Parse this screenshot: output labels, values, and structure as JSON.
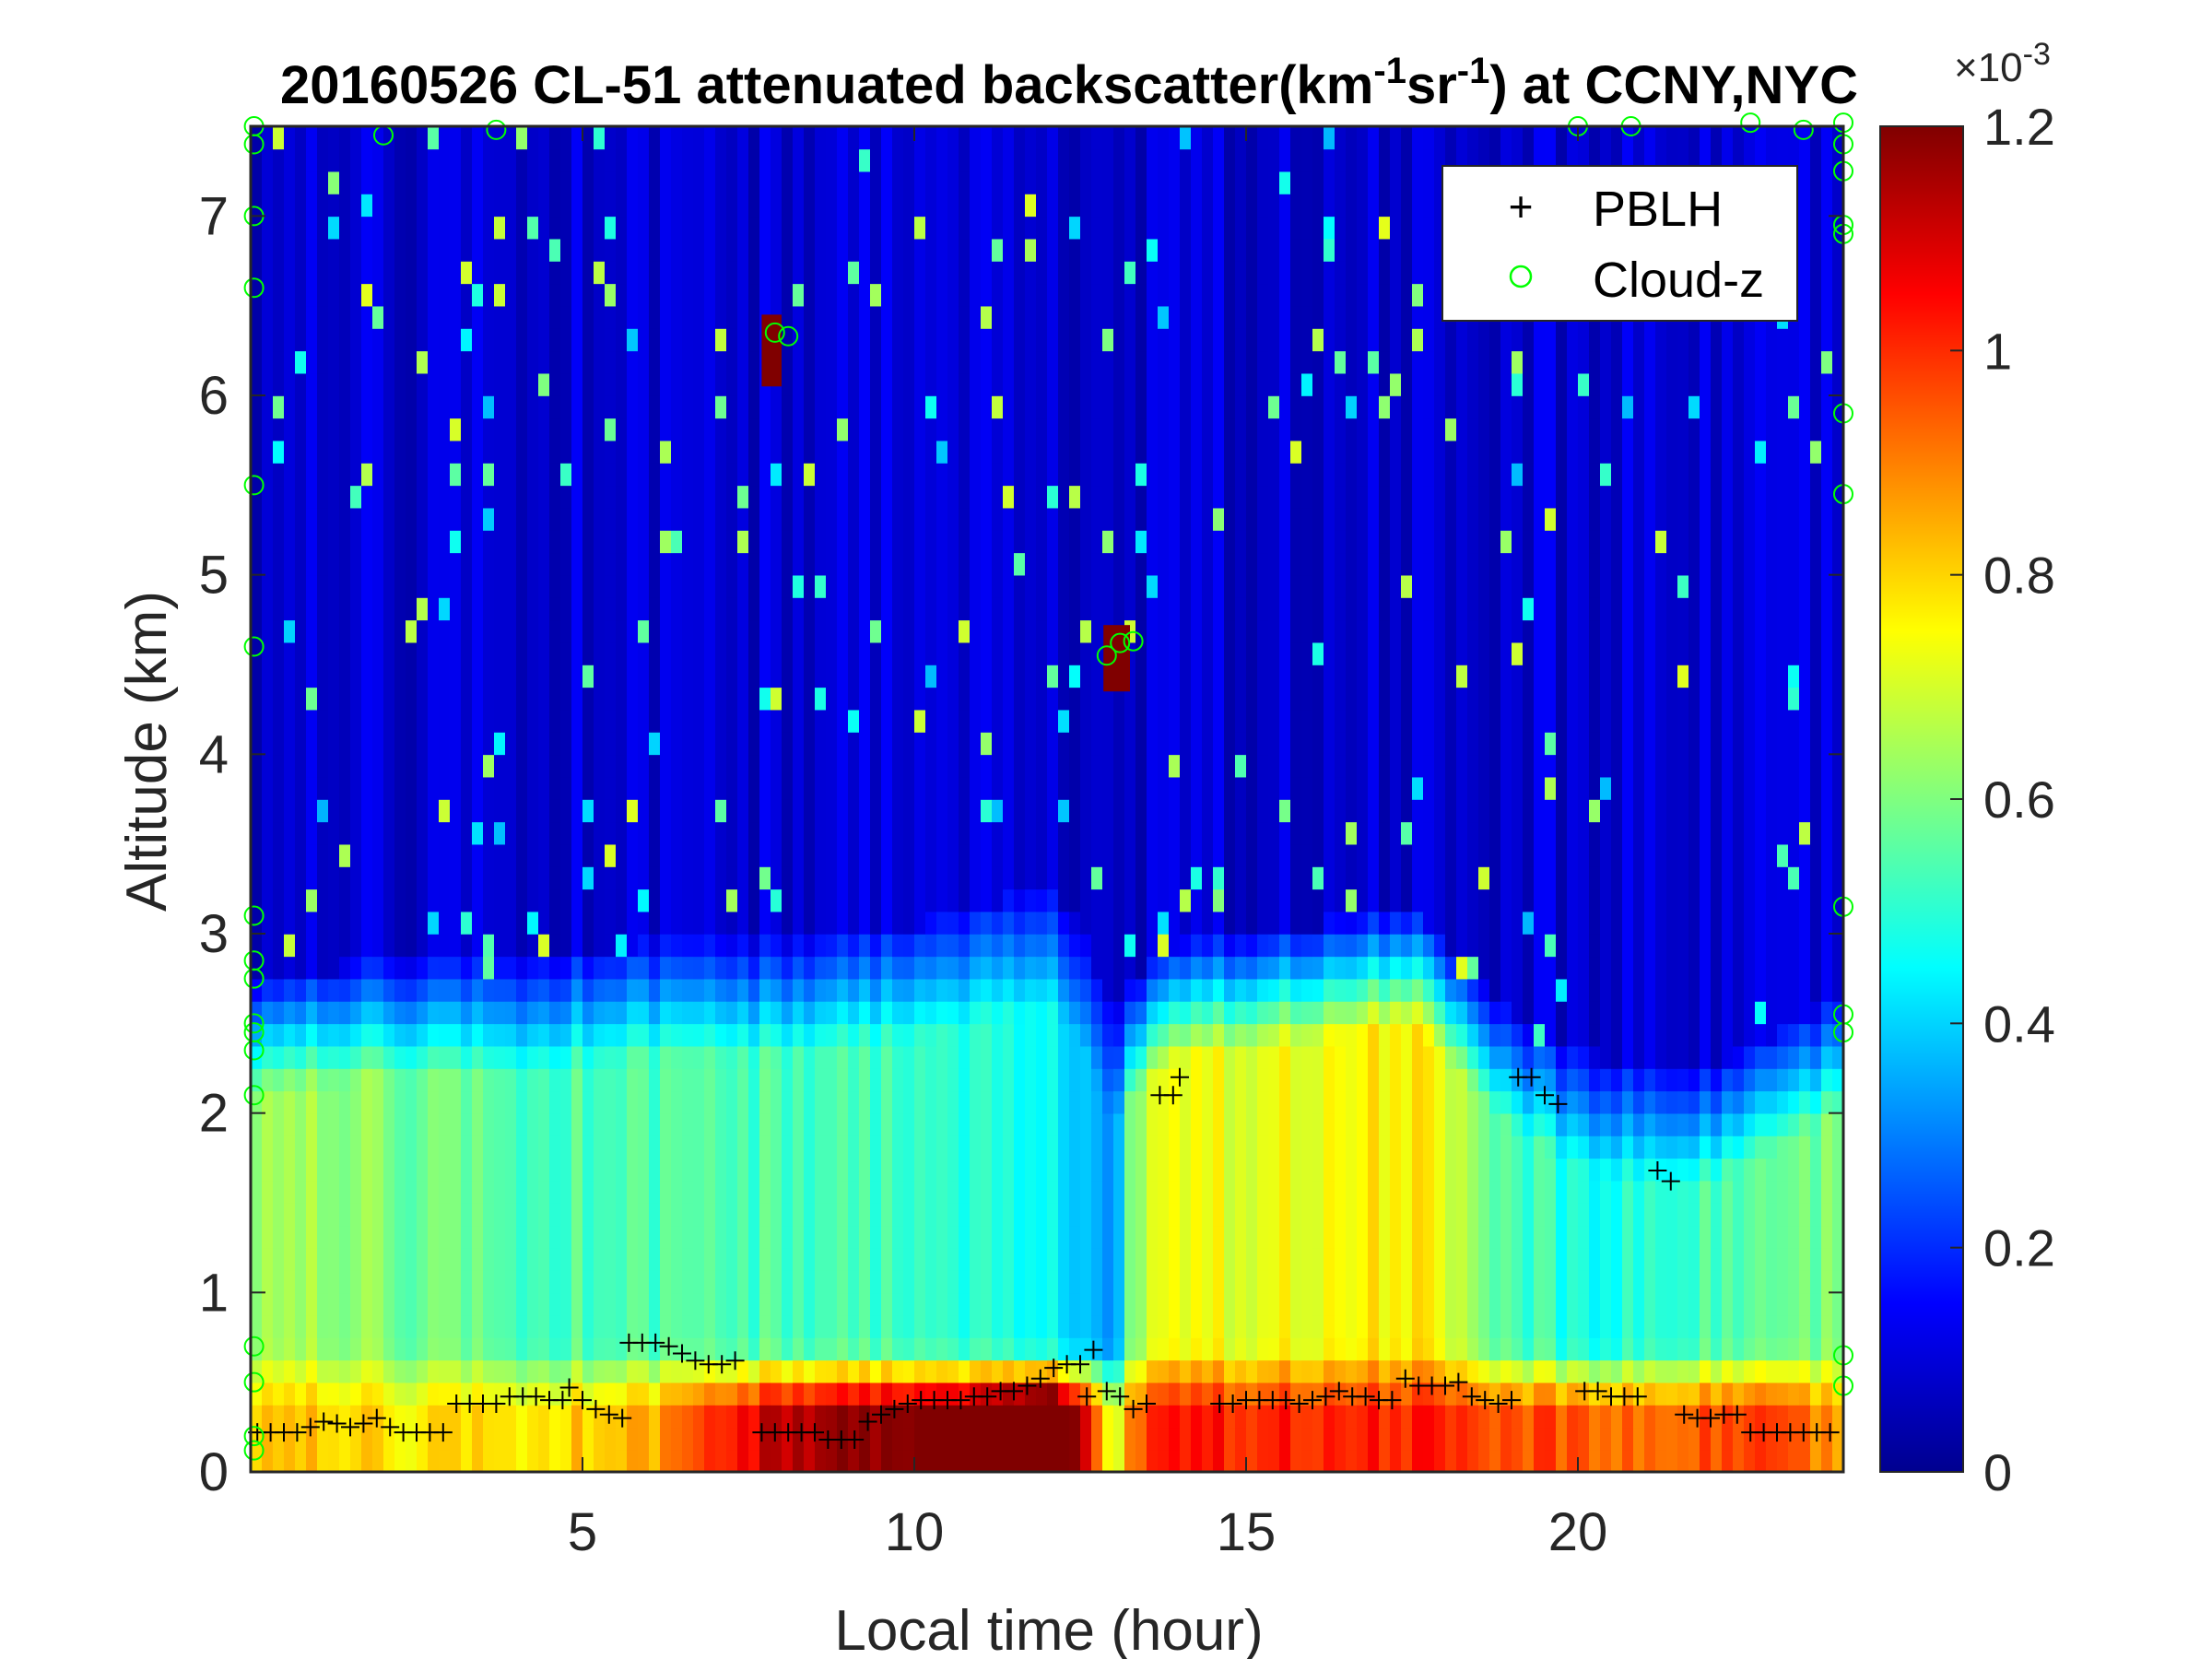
{
  "chart_data": {
    "type": "heatmap",
    "title": {
      "prefix": "20160526  CL-51 attenuated backscatter(km",
      "sup1": "-1",
      "mid": "sr",
      "sup2": "-1",
      "suffix": ") at CCNY,NYC"
    },
    "xlabel": "Local time (hour)",
    "ylabel": "Altitude (km)",
    "xlim": [
      0,
      24
    ],
    "ylim": [
      0,
      7.5
    ],
    "xticks": [
      "5",
      "10",
      "15",
      "20"
    ],
    "yticks": [
      "0",
      "1",
      "2",
      "3",
      "4",
      "5",
      "6",
      "7"
    ],
    "colormap": "jet",
    "colorbar": {
      "range": [
        0,
        0.0012
      ],
      "ticks": [
        "0",
        "0.2",
        "0.4",
        "0.6",
        "0.8",
        "1",
        "1.2"
      ],
      "exponent_base": "×10",
      "exponent": "-3"
    },
    "backscatter_profile": {
      "hours": [
        0,
        2,
        4,
        6,
        8,
        10,
        11,
        12,
        12.5,
        13,
        13.3,
        14,
        16,
        17.5,
        18,
        19,
        20,
        21,
        22,
        23,
        24
      ],
      "surface_layer_value": [
        0.7,
        0.65,
        0.65,
        0.7,
        0.95,
        1.0,
        1.05,
        1.2,
        1.0,
        0.55,
        0.8,
        0.85,
        0.85,
        0.85,
        0.85,
        0.8,
        0.8,
        0.75,
        0.8,
        0.8,
        0.7
      ],
      "mixed_layer_value": [
        0.55,
        0.5,
        0.45,
        0.45,
        0.45,
        0.42,
        0.4,
        0.38,
        0.35,
        0.25,
        0.55,
        0.6,
        0.62,
        0.65,
        0.6,
        0.45,
        0.4,
        0.4,
        0.45,
        0.45,
        0.5
      ],
      "aerosol_top_km": [
        2.4,
        2.5,
        2.5,
        2.6,
        2.6,
        2.7,
        2.8,
        2.9,
        2.7,
        2.2,
        2.4,
        2.6,
        2.7,
        2.8,
        2.6,
        2.2,
        2.0,
        1.9,
        1.9,
        2.1,
        2.3
      ],
      "free_troposphere_value": 0.08
    },
    "cloud_patches": [
      {
        "x0": 7.7,
        "x1": 8.0,
        "y0": 6.05,
        "y1": 6.45,
        "value": 1.2
      },
      {
        "x0": 12.85,
        "x1": 13.25,
        "y0": 4.35,
        "y1": 4.72,
        "value": 1.2
      }
    ],
    "series": [
      {
        "name": "PBLH",
        "marker": "+",
        "color": "#000000",
        "points": [
          [
            0.1,
            0.22
          ],
          [
            0.3,
            0.22
          ],
          [
            0.5,
            0.22
          ],
          [
            0.7,
            0.22
          ],
          [
            0.9,
            0.25
          ],
          [
            1.1,
            0.28
          ],
          [
            1.3,
            0.27
          ],
          [
            1.5,
            0.25
          ],
          [
            1.7,
            0.27
          ],
          [
            1.9,
            0.3
          ],
          [
            2.1,
            0.25
          ],
          [
            2.3,
            0.22
          ],
          [
            2.5,
            0.22
          ],
          [
            2.7,
            0.22
          ],
          [
            2.9,
            0.22
          ],
          [
            3.1,
            0.38
          ],
          [
            3.3,
            0.38
          ],
          [
            3.5,
            0.38
          ],
          [
            3.7,
            0.38
          ],
          [
            3.9,
            0.42
          ],
          [
            4.1,
            0.42
          ],
          [
            4.3,
            0.42
          ],
          [
            4.5,
            0.4
          ],
          [
            4.7,
            0.4
          ],
          [
            4.8,
            0.47
          ],
          [
            5.0,
            0.4
          ],
          [
            5.2,
            0.35
          ],
          [
            5.4,
            0.32
          ],
          [
            5.6,
            0.3
          ],
          [
            5.7,
            0.72
          ],
          [
            5.9,
            0.72
          ],
          [
            6.1,
            0.72
          ],
          [
            6.3,
            0.7
          ],
          [
            6.5,
            0.66
          ],
          [
            6.7,
            0.62
          ],
          [
            6.9,
            0.6
          ],
          [
            7.1,
            0.6
          ],
          [
            7.3,
            0.62
          ],
          [
            7.7,
            0.22
          ],
          [
            7.9,
            0.22
          ],
          [
            8.1,
            0.22
          ],
          [
            8.3,
            0.22
          ],
          [
            8.5,
            0.22
          ],
          [
            8.7,
            0.18
          ],
          [
            8.9,
            0.18
          ],
          [
            9.1,
            0.18
          ],
          [
            9.3,
            0.28
          ],
          [
            9.5,
            0.32
          ],
          [
            9.7,
            0.35
          ],
          [
            9.9,
            0.38
          ],
          [
            10.1,
            0.4
          ],
          [
            10.3,
            0.4
          ],
          [
            10.5,
            0.4
          ],
          [
            10.7,
            0.4
          ],
          [
            10.9,
            0.42
          ],
          [
            11.1,
            0.42
          ],
          [
            11.3,
            0.45
          ],
          [
            11.5,
            0.45
          ],
          [
            11.7,
            0.48
          ],
          [
            11.9,
            0.52
          ],
          [
            12.1,
            0.58
          ],
          [
            12.3,
            0.6
          ],
          [
            12.5,
            0.6
          ],
          [
            12.6,
            0.42
          ],
          [
            12.7,
            0.68
          ],
          [
            12.9,
            0.45
          ],
          [
            13.1,
            0.42
          ],
          [
            13.3,
            0.35
          ],
          [
            13.5,
            0.38
          ],
          [
            13.7,
            2.1
          ],
          [
            13.9,
            2.1
          ],
          [
            14.0,
            2.2
          ],
          [
            14.6,
            0.38
          ],
          [
            14.8,
            0.38
          ],
          [
            15.0,
            0.4
          ],
          [
            15.2,
            0.4
          ],
          [
            15.4,
            0.4
          ],
          [
            15.6,
            0.4
          ],
          [
            15.8,
            0.38
          ],
          [
            16.0,
            0.4
          ],
          [
            16.2,
            0.42
          ],
          [
            16.4,
            0.45
          ],
          [
            16.6,
            0.42
          ],
          [
            16.8,
            0.42
          ],
          [
            17.0,
            0.4
          ],
          [
            17.2,
            0.4
          ],
          [
            17.4,
            0.52
          ],
          [
            17.6,
            0.48
          ],
          [
            17.8,
            0.48
          ],
          [
            18.0,
            0.48
          ],
          [
            18.2,
            0.5
          ],
          [
            18.4,
            0.42
          ],
          [
            18.6,
            0.4
          ],
          [
            18.8,
            0.38
          ],
          [
            19.0,
            0.4
          ],
          [
            19.1,
            2.2
          ],
          [
            19.3,
            2.2
          ],
          [
            19.5,
            2.1
          ],
          [
            19.7,
            2.05
          ],
          [
            20.1,
            0.45
          ],
          [
            20.3,
            0.45
          ],
          [
            20.5,
            0.42
          ],
          [
            20.7,
            0.42
          ],
          [
            20.9,
            0.42
          ],
          [
            21.2,
            1.68
          ],
          [
            21.4,
            1.62
          ],
          [
            21.6,
            0.32
          ],
          [
            21.8,
            0.3
          ],
          [
            22.0,
            0.3
          ],
          [
            22.2,
            0.32
          ],
          [
            22.4,
            0.32
          ],
          [
            22.6,
            0.22
          ],
          [
            22.8,
            0.22
          ],
          [
            23.0,
            0.22
          ],
          [
            23.2,
            0.22
          ],
          [
            23.4,
            0.22
          ],
          [
            23.6,
            0.22
          ],
          [
            23.8,
            0.22
          ]
        ]
      },
      {
        "name": "Cloud-z",
        "marker": "o",
        "color": "#00ff00",
        "points": [
          [
            7.9,
            6.35
          ],
          [
            8.1,
            6.33
          ],
          [
            12.9,
            4.55
          ],
          [
            13.1,
            4.62
          ],
          [
            13.3,
            4.63
          ],
          [
            0.05,
            7.5
          ],
          [
            0.05,
            7.4
          ],
          [
            0.05,
            7.0
          ],
          [
            0.05,
            6.6
          ],
          [
            0.05,
            5.5
          ],
          [
            0.05,
            4.6
          ],
          [
            0.05,
            3.1
          ],
          [
            0.05,
            2.85
          ],
          [
            0.05,
            2.75
          ],
          [
            0.05,
            2.5
          ],
          [
            0.05,
            2.45
          ],
          [
            0.05,
            2.35
          ],
          [
            0.05,
            2.1
          ],
          [
            0.05,
            0.7
          ],
          [
            0.05,
            0.5
          ],
          [
            0.05,
            0.2
          ],
          [
            0.05,
            0.12
          ],
          [
            2.0,
            7.45
          ],
          [
            3.7,
            7.48
          ],
          [
            20.0,
            7.5
          ],
          [
            20.8,
            7.5
          ],
          [
            22.6,
            7.52
          ],
          [
            23.4,
            7.48
          ],
          [
            24.0,
            7.52
          ],
          [
            24.0,
            7.4
          ],
          [
            24.0,
            7.25
          ],
          [
            24.0,
            6.95
          ],
          [
            24.0,
            6.9
          ],
          [
            24.0,
            5.9
          ],
          [
            24.0,
            5.45
          ],
          [
            24.0,
            3.15
          ],
          [
            24.0,
            2.55
          ],
          [
            24.0,
            2.45
          ],
          [
            24.0,
            0.65
          ],
          [
            24.0,
            0.48
          ]
        ]
      }
    ],
    "legend": {
      "position": "top-right",
      "entries": [
        "PBLH",
        "Cloud-z"
      ]
    },
    "grid": false
  }
}
